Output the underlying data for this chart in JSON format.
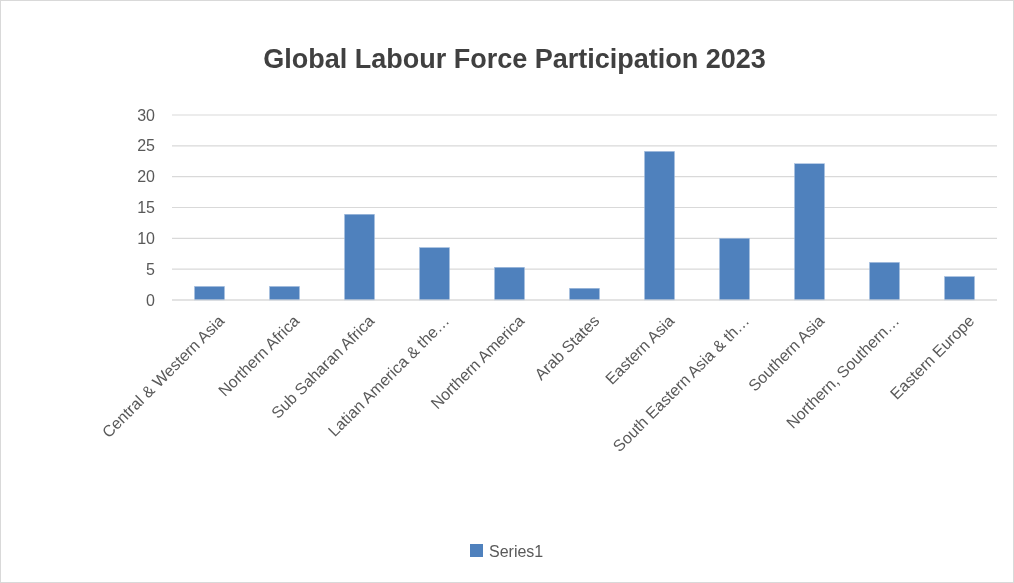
{
  "chart_data": {
    "type": "bar",
    "title": "Global Labour Force Participation 2023",
    "categories": [
      "Central & Western Asia",
      "Northern Africa",
      "Sub Saharan Africa",
      "Latian America & the…",
      "Northern America",
      "Arab States",
      "Eastern Asia",
      "South Eastern Asia & th…",
      "Southern Asia",
      "Northern, Southern…",
      "Eastern Europe"
    ],
    "series": [
      {
        "name": "Series1",
        "color": "#4f81bd",
        "values": [
          2.2,
          2.2,
          13.9,
          8.5,
          5.3,
          1.9,
          24.1,
          10.0,
          22.1,
          6.1,
          3.8
        ]
      }
    ],
    "ylim": [
      0,
      30
    ],
    "yticks": [
      0,
      5,
      10,
      15,
      20,
      25,
      30
    ],
    "grid": "y",
    "legend": "bottom"
  }
}
